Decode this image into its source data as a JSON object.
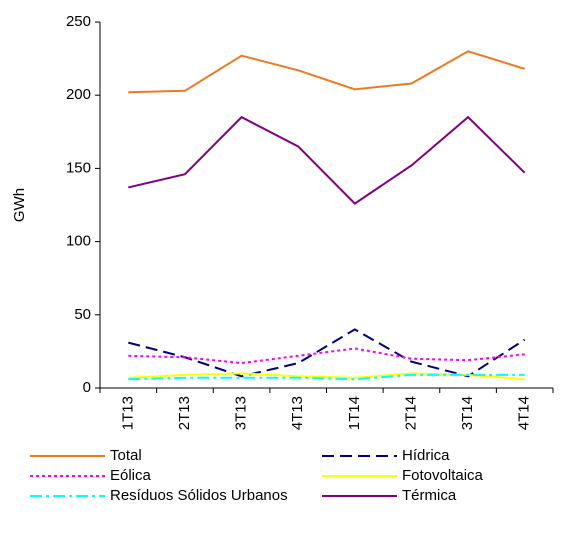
{
  "chart_data": {
    "type": "line",
    "y_label": "GWh",
    "categories": [
      "1T13",
      "2T13",
      "3T13",
      "4T13",
      "1T14",
      "2T14",
      "3T14",
      "4T14"
    ],
    "ylim": [
      0,
      250
    ],
    "yticks": [
      0,
      50,
      100,
      150,
      200,
      250
    ],
    "series": [
      {
        "name": "Total",
        "color": "#f07820",
        "dash": "none",
        "values": [
          202,
          203,
          227,
          217,
          204,
          208,
          230,
          218
        ]
      },
      {
        "name": "Hídrica",
        "color": "#000080",
        "dash": "12 6",
        "values": [
          31,
          21,
          8,
          17,
          40,
          18,
          8,
          33
        ]
      },
      {
        "name": "Eólica",
        "color": "#ff00ff",
        "dash": "3 3",
        "values": [
          22,
          21,
          17,
          22,
          27,
          20,
          19,
          23
        ]
      },
      {
        "name": "Fotovoltaica",
        "color": "#ffff00",
        "dash": "none",
        "values": [
          7,
          9,
          10,
          8,
          7,
          10,
          9,
          6
        ]
      },
      {
        "name": "Resíduos Sólidos Urbanos",
        "color": "#00ffff",
        "dash": "12 4 3 4",
        "values": [
          6,
          7,
          7,
          7,
          6,
          9,
          9,
          9
        ]
      },
      {
        "name": "Térmica",
        "color": "#800080",
        "dash": "none",
        "values": [
          137,
          146,
          185,
          165,
          126,
          152,
          185,
          147
        ]
      }
    ]
  }
}
